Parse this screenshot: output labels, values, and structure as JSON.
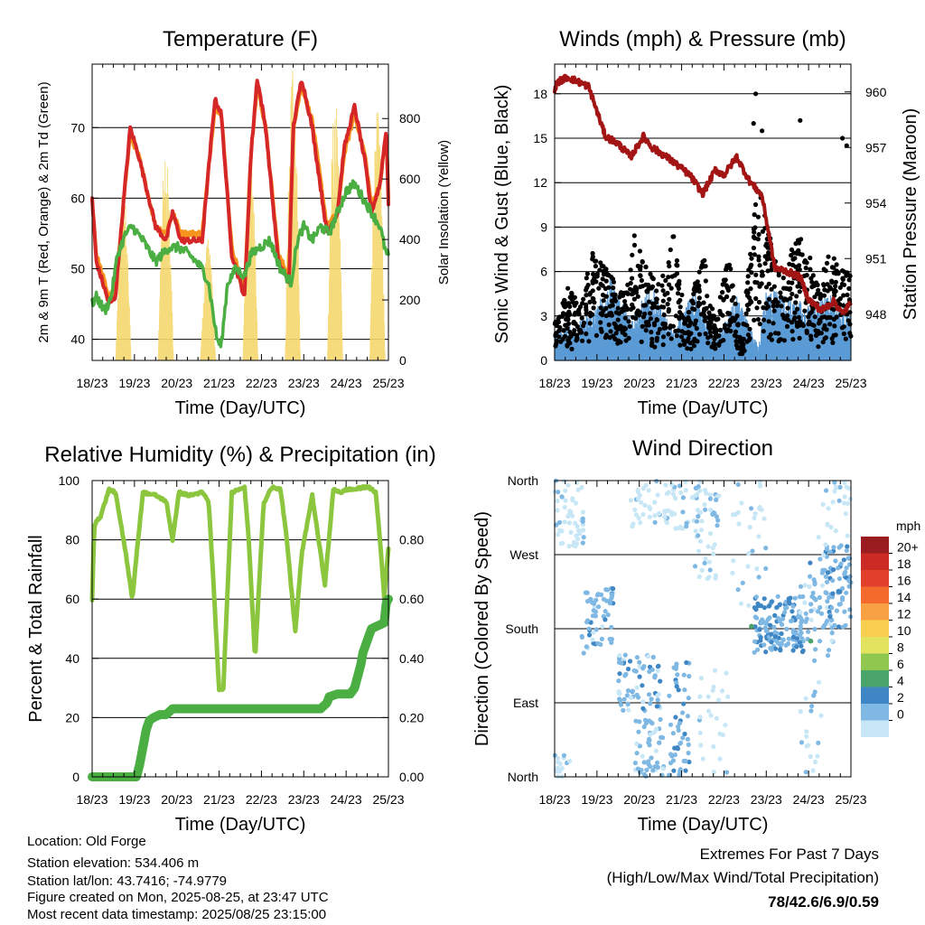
{
  "colors": {
    "temp2m": "#d62728",
    "temp9m": "#f7941d",
    "dewpoint": "#4aae43",
    "insolation": "#f5d76e",
    "gust": "#000000",
    "wind": "#5b9bd5",
    "pressure": "#a31515",
    "rh": "#8cc63f",
    "precip": "#4aae43",
    "extremes": "#c0282d"
  },
  "x_ticks": [
    "18/23",
    "19/23",
    "20/23",
    "21/23",
    "22/23",
    "23/23",
    "24/23",
    "25/23"
  ],
  "chart_data": [
    {
      "type": "line",
      "title": "Temperature (F)",
      "xlabel": "Time (Day/UTC)",
      "ylabel": "2m & 9m T (Red, Orange) & 2m Td (Green)",
      "ylabel_right": "Solar Insolation (Yellow)",
      "x_ticks": [
        "18/23",
        "19/23",
        "20/23",
        "21/23",
        "22/23",
        "23/23",
        "24/23",
        "25/23"
      ],
      "ylim": [
        37,
        79
      ],
      "yticks": [
        "40",
        "50",
        "60",
        "70"
      ],
      "y2lim": [
        0,
        980
      ],
      "y2ticks": [
        "0",
        "200",
        "400",
        "600",
        "800"
      ],
      "grid": true,
      "series": [
        {
          "key": "t2",
          "x": [
            0,
            0.1,
            0.25,
            0.4,
            0.55,
            0.75,
            0.9,
            1.1,
            1.5,
            1.75,
            1.9,
            2.1,
            2.4,
            2.6,
            2.75,
            2.9,
            3.05,
            3.3,
            3.6,
            3.75,
            3.9,
            4.1,
            4.4,
            4.65,
            4.75,
            4.95,
            5.2,
            5.55,
            5.8,
            5.95,
            6.2,
            6.45,
            6.6,
            6.8,
            6.95,
            7.0
          ],
          "y": [
            60,
            51,
            48,
            45,
            46,
            60,
            70,
            66,
            56,
            54,
            58,
            54,
            54,
            54,
            64,
            74,
            72,
            52,
            46,
            66,
            77,
            70,
            51,
            48,
            70,
            77,
            70,
            55,
            58,
            67,
            73,
            65,
            58,
            62,
            70,
            59
          ]
        },
        {
          "key": "t9",
          "x": [
            0,
            0.1,
            0.25,
            0.4,
            0.55,
            0.75,
            0.9,
            1.1,
            1.5,
            1.75,
            1.9,
            2.1,
            2.4,
            2.6,
            2.75,
            2.9,
            3.05,
            3.3,
            3.6,
            3.75,
            3.9,
            4.1,
            4.4,
            4.65,
            4.75,
            4.95,
            5.2,
            5.55,
            5.8,
            5.95,
            6.2,
            6.45,
            6.6,
            6.8,
            6.95,
            7.0
          ],
          "y": [
            60,
            52,
            49,
            46,
            47,
            60,
            69,
            66,
            56,
            55,
            58,
            55,
            55,
            55,
            64,
            73,
            72,
            53,
            47,
            66,
            76,
            70,
            52,
            49,
            70,
            76,
            71,
            56,
            58,
            66,
            72,
            66,
            59,
            62,
            69,
            60
          ]
        },
        {
          "key": "td",
          "x": [
            0,
            0.1,
            0.3,
            0.45,
            0.6,
            0.8,
            0.95,
            1.2,
            1.5,
            1.8,
            2.05,
            2.3,
            2.6,
            2.75,
            2.95,
            3.05,
            3.2,
            3.4,
            3.6,
            3.75,
            3.95,
            4.2,
            4.45,
            4.7,
            4.85,
            5.0,
            5.2,
            5.4,
            5.6,
            5.8,
            6.0,
            6.2,
            6.4,
            6.6,
            6.8,
            6.95,
            7.0
          ],
          "y": [
            45,
            46,
            44,
            46,
            52,
            55,
            56,
            54,
            51,
            53,
            53,
            52,
            50,
            48,
            40,
            39,
            48,
            50,
            49,
            52,
            53,
            54,
            50,
            48,
            54,
            56,
            54,
            56,
            55,
            58,
            61,
            62,
            60,
            58,
            56,
            52,
            52
          ]
        }
      ],
      "insolation": {
        "days": [
          0,
          1,
          2,
          3,
          4,
          5,
          6
        ],
        "center_offset": 0.74,
        "width": 0.36,
        "peaks": [
          580,
          700,
          400,
          680,
          980,
          890,
          830
        ]
      }
    },
    {
      "type": "scatter",
      "title": "Winds (mph) & Pressure (mb)",
      "xlabel": "Time (Day/UTC)",
      "ylabel": "Sonic Wind & Gust (Blue, Black)",
      "ylabel_right": "Station Pressure (Maroon)",
      "x_ticks": [
        "18/23",
        "19/23",
        "20/23",
        "21/23",
        "22/23",
        "23/23",
        "24/23",
        "25/23"
      ],
      "ylim": [
        0,
        20
      ],
      "yticks": [
        "0",
        "3",
        "6",
        "9",
        "12",
        "15",
        "18"
      ],
      "y2lim": [
        945.5,
        961.5
      ],
      "y2ticks": [
        "948",
        "951",
        "954",
        "957",
        "960"
      ],
      "grid": true,
      "wind_envelope": {
        "x": [
          0,
          0.5,
          1.0,
          1.3,
          1.8,
          2.3,
          2.8,
          3.3,
          3.8,
          4.3,
          4.8,
          5.0,
          5.5,
          6.0,
          6.5,
          7.0
        ],
        "y": [
          1.5,
          2,
          3,
          4.5,
          2.5,
          4,
          1.5,
          4,
          1,
          3.5,
          0.8,
          4,
          3.5,
          3,
          3.5,
          3
        ]
      },
      "gust_envelope": {
        "x": [
          0,
          0.3,
          0.6,
          0.9,
          1.2,
          1.6,
          1.9,
          2.2,
          2.5,
          2.8,
          3.1,
          3.5,
          3.8,
          4.1,
          4.4,
          4.8,
          5.0,
          5.3,
          5.6,
          5.9,
          6.2,
          6.5,
          6.8,
          7.0
        ],
        "y": [
          2,
          4,
          3,
          6,
          5,
          4,
          7,
          5,
          4,
          7,
          2,
          6,
          2,
          6,
          1,
          10,
          8,
          5,
          6,
          7,
          4,
          6,
          5,
          5
        ]
      },
      "pressure": {
        "x": [
          0,
          0.05,
          0.3,
          0.8,
          1.2,
          1.5,
          1.8,
          2.1,
          2.3,
          2.7,
          3.2,
          3.5,
          3.8,
          4.0,
          4.3,
          4.6,
          4.9,
          5.2,
          5.5,
          5.8,
          6.0,
          6.3,
          6.6,
          6.8,
          7.0
        ],
        "y": [
          960,
          960.5,
          960.8,
          960.3,
          957.6,
          957.2,
          956.5,
          957.6,
          957,
          956.4,
          955.5,
          954.5,
          955.8,
          955.5,
          956.5,
          955.2,
          954.4,
          950.5,
          950.3,
          950,
          948.8,
          948.2,
          948.7,
          948,
          948.6
        ]
      },
      "points": [
        [
          4.75,
          18
        ],
        [
          4.7,
          16
        ],
        [
          5.8,
          16.2
        ],
        [
          6.8,
          15
        ],
        [
          6.9,
          14.5
        ],
        [
          4.9,
          15.5
        ]
      ]
    },
    {
      "type": "line",
      "title": "Relative Humidity (%) & Precipitation (in)",
      "xlabel": "Time (Day/UTC)",
      "ylabel": "Percent & Total Rainfall",
      "x_ticks": [
        "18/23",
        "19/23",
        "20/23",
        "21/23",
        "22/23",
        "23/23",
        "24/23",
        "25/23"
      ],
      "ylim": [
        0,
        100
      ],
      "yticks": [
        "0",
        "20",
        "40",
        "60",
        "80",
        "100"
      ],
      "y2ticks": [
        "0.00",
        "0.20",
        "0.40",
        "0.60",
        "0.80"
      ],
      "y2lim": [
        0,
        1.0
      ],
      "grid": true,
      "series": [
        {
          "key": "rh",
          "x": [
            0,
            0.05,
            0.2,
            0.4,
            0.55,
            0.8,
            0.95,
            1.05,
            1.2,
            1.5,
            1.75,
            1.9,
            2.05,
            2.3,
            2.6,
            2.75,
            2.85,
            3.0,
            3.1,
            3.3,
            3.6,
            3.7,
            3.85,
            4.05,
            4.25,
            4.45,
            4.6,
            4.8,
            4.95,
            5.2,
            5.5,
            5.7,
            5.9,
            6.0,
            6.2,
            6.5,
            6.7,
            6.8,
            6.9,
            7.0
          ],
          "y": [
            60,
            85,
            88,
            97,
            96,
            75,
            60,
            75,
            96,
            95,
            93,
            80,
            96,
            95,
            96,
            93,
            70,
            29,
            30,
            96,
            98,
            80,
            40,
            92,
            98,
            97,
            80,
            49,
            75,
            95,
            65,
            97,
            96,
            97,
            97,
            98,
            96,
            80,
            61,
            77
          ]
        },
        {
          "key": "precip",
          "x": [
            0,
            1.05,
            1.12,
            1.2,
            1.28,
            1.35,
            1.45,
            1.6,
            1.75,
            1.9,
            5.4,
            5.55,
            5.6,
            5.8,
            6.1,
            6.2,
            6.35,
            6.4,
            6.6,
            6.9,
            6.95,
            7.0
          ],
          "y": [
            0,
            0,
            0.04,
            0.1,
            0.16,
            0.19,
            0.2,
            0.21,
            0.21,
            0.23,
            0.23,
            0.25,
            0.27,
            0.28,
            0.28,
            0.3,
            0.38,
            0.42,
            0.5,
            0.52,
            0.59,
            0.6
          ]
        }
      ]
    },
    {
      "type": "scatter",
      "title": "Wind Direction",
      "xlabel": "Time (Day/UTC)",
      "ylabel": "Direction (Colored By Speed)",
      "x_ticks": [
        "18/23",
        "19/23",
        "20/23",
        "21/23",
        "22/23",
        "23/23",
        "24/23",
        "25/23"
      ],
      "ylim": [
        0,
        360
      ],
      "yticks": [
        "North",
        "East",
        "South",
        "West",
        "North"
      ],
      "grid": true,
      "legend_title": "mph",
      "legend_labels": [
        "20+",
        "18",
        "16",
        "14",
        "12",
        "10",
        "8",
        "6",
        "4",
        "2",
        "0"
      ],
      "legend_colors": [
        "#9b1c20",
        "#cc2a25",
        "#e2402d",
        "#f36a2c",
        "#f8a044",
        "#f8cf4f",
        "#e3e35f",
        "#8fc74f",
        "#4aa56a",
        "#3e86c4",
        "#7fb8e3",
        "#c7e6f6"
      ],
      "clusters": [
        {
          "x0": 0.0,
          "x1": 0.7,
          "dmin": 280,
          "dmax": 360,
          "n": 55,
          "spd": 1.2
        },
        {
          "x0": 0.0,
          "x1": 0.4,
          "dmin": 0,
          "dmax": 30,
          "n": 15,
          "spd": 1
        },
        {
          "x0": 0.6,
          "x1": 1.4,
          "dmin": 150,
          "dmax": 230,
          "n": 60,
          "spd": 3
        },
        {
          "x0": 1.5,
          "x1": 2.5,
          "dmin": 80,
          "dmax": 150,
          "n": 70,
          "spd": 3
        },
        {
          "x0": 1.9,
          "x1": 2.6,
          "dmin": 0,
          "dmax": 70,
          "n": 50,
          "spd": 2.5
        },
        {
          "x0": 2.7,
          "x1": 3.2,
          "dmin": 0,
          "dmax": 140,
          "n": 50,
          "spd": 3.5
        },
        {
          "x0": 1.8,
          "x1": 3.6,
          "dmin": 300,
          "dmax": 360,
          "n": 70,
          "spd": 1.2
        },
        {
          "x0": 3.3,
          "x1": 3.9,
          "dmin": 240,
          "dmax": 360,
          "n": 45,
          "spd": 2
        },
        {
          "x0": 3.4,
          "x1": 4.1,
          "dmin": 0,
          "dmax": 140,
          "n": 25,
          "spd": 1
        },
        {
          "x0": 4.7,
          "x1": 5.9,
          "dmin": 150,
          "dmax": 220,
          "n": 140,
          "spd": 4
        },
        {
          "x0": 5.8,
          "x1": 6.6,
          "dmin": 140,
          "dmax": 260,
          "n": 60,
          "spd": 3
        },
        {
          "x0": 6.4,
          "x1": 7.0,
          "dmin": 180,
          "dmax": 280,
          "n": 55,
          "spd": 3.5
        },
        {
          "x0": 4.2,
          "x1": 5.0,
          "dmin": 200,
          "dmax": 360,
          "n": 30,
          "spd": 1.2
        },
        {
          "x0": 5.8,
          "x1": 6.3,
          "dmin": 0,
          "dmax": 120,
          "n": 20,
          "spd": 1
        },
        {
          "x0": 6.2,
          "x1": 7.0,
          "dmin": 260,
          "dmax": 360,
          "n": 30,
          "spd": 1.5
        }
      ],
      "highlights": [
        [
          4.65,
          183,
          7
        ],
        [
          6.05,
          165,
          7
        ]
      ]
    }
  ],
  "footer": {
    "location": "Location: Old Forge",
    "elevation": "Station elevation: 534.406 m",
    "latlon": "Station lat/lon: 43.7416; -74.9779",
    "created": "Figure created on Mon, 2025-08-25, at 23:47 UTC",
    "recent": "Most recent data timestamp: 2025/08/25 23:15:00"
  },
  "extremes": {
    "title": "Extremes For Past 7 Days",
    "subtitle": "(High/Low/Max Wind/Total Precipitation)",
    "value": "78/42.6/6.9/0.59"
  }
}
